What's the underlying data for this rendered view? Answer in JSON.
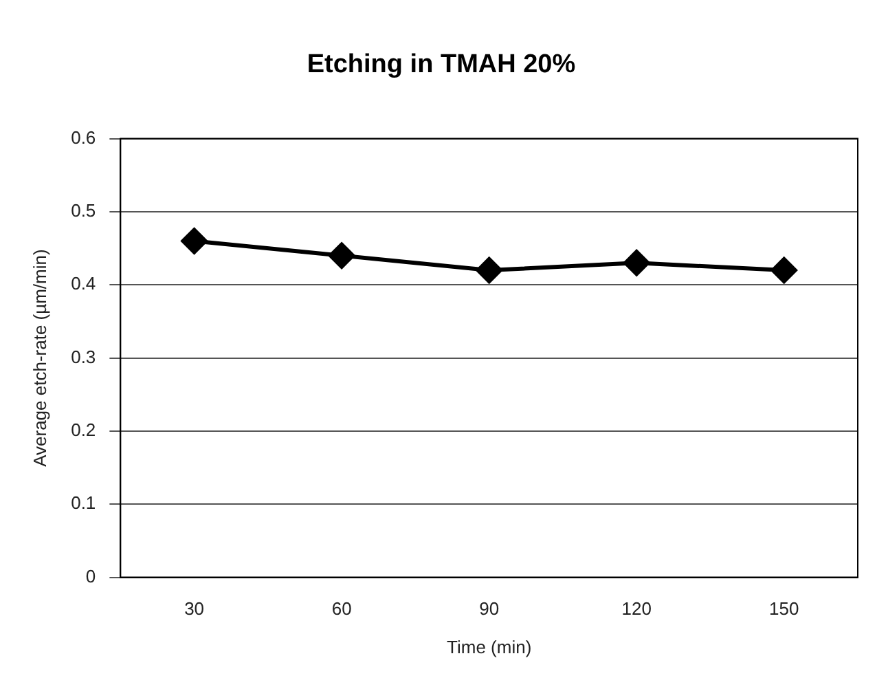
{
  "chart_data": {
    "type": "line",
    "title": "Etching in TMAH 20%",
    "xlabel": "Time (min)",
    "ylabel": "Average etch-rate (µm/min)",
    "categories": [
      "30",
      "60",
      "90",
      "120",
      "150"
    ],
    "series": [
      {
        "color": "#000000",
        "values": [
          0.46,
          0.44,
          0.42,
          0.43,
          0.42
        ]
      }
    ],
    "ylim": [
      0,
      0.6
    ],
    "yticks": [
      0,
      0.1,
      0.2,
      0.3,
      0.4,
      0.5,
      0.6
    ],
    "grid": "y",
    "legend": false,
    "marker": "diamond",
    "line_style": "solid"
  }
}
